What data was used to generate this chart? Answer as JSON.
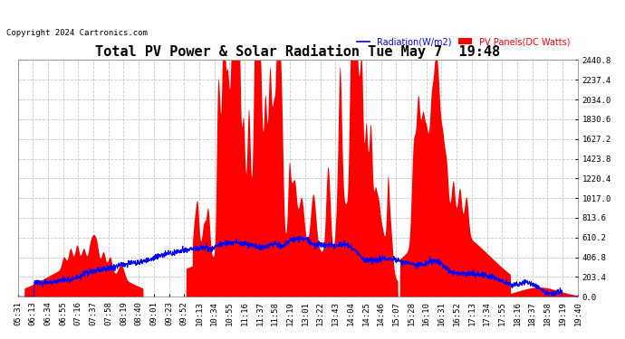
{
  "title": "Total PV Power & Solar Radiation Tue May 7  19:48",
  "copyright": "Copyright 2024 Cartronics.com",
  "legend_radiation": "Radiation(W/m2)",
  "legend_pv": "PV Panels(DC Watts)",
  "legend_radiation_color": "blue",
  "legend_pv_color": "red",
  "ymax": 2440.8,
  "ymin": 0.0,
  "ytick_interval": 203.4,
  "background_color": "#ffffff",
  "grid_color": "#c8c8c8",
  "fill_color": "red",
  "line_color": "blue",
  "title_fontsize": 11,
  "copyright_fontsize": 6.5,
  "tick_fontsize": 6.5,
  "xtick_labels": [
    "05:31",
    "06:13",
    "06:34",
    "06:55",
    "07:16",
    "07:37",
    "07:58",
    "08:19",
    "08:40",
    "09:01",
    "09:23",
    "09:52",
    "10:13",
    "10:34",
    "10:55",
    "11:16",
    "11:37",
    "11:58",
    "12:19",
    "13:01",
    "13:22",
    "13:43",
    "14:04",
    "14:25",
    "14:46",
    "15:07",
    "15:28",
    "16:10",
    "16:31",
    "16:52",
    "17:13",
    "17:34",
    "17:55",
    "18:16",
    "18:37",
    "18:58",
    "19:19",
    "19:40"
  ]
}
